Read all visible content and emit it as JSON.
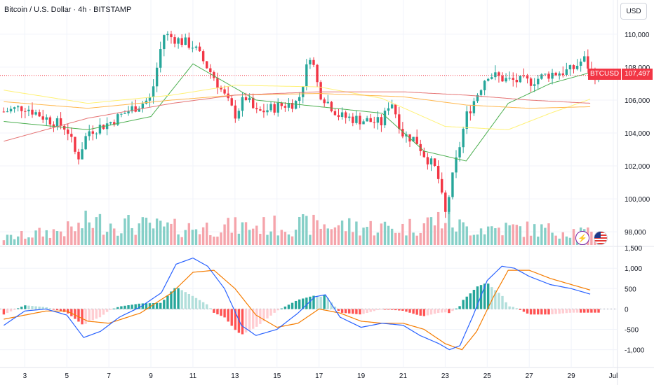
{
  "header": {
    "title": "Bitcoin / U.S. Dollar · 4h · BITSTAMP",
    "currency_button": "USD"
  },
  "last_price": {
    "symbol": "BTCUSD",
    "value": "107,497",
    "raw": 107497
  },
  "colors": {
    "up": "#26a69a",
    "down": "#f23645",
    "vol_up": "#85cfc7",
    "vol_down": "#f5a4ab",
    "sma_fast": "#4caf50",
    "sma_mid": "#fff176",
    "sma_slow": "#ffb74d",
    "sma_long": "#e57373",
    "macd": "#2962ff",
    "signal": "#f57c00"
  },
  "icons": [
    "flash-icon",
    "us-flag-icon"
  ],
  "chart_data": [
    {
      "type": "candlestick",
      "timeframe": "4h",
      "ylim": [
        97200,
        110800
      ],
      "y_ticks": [
        "98,000",
        "100,000",
        "102,000",
        "104,000",
        "106,000",
        "108,000",
        "110,000"
      ],
      "x_ticks": [
        "3",
        "5",
        "7",
        "9",
        "11",
        "13",
        "15",
        "17",
        "19",
        "21",
        "23",
        "25",
        "27",
        "29",
        "Jul"
      ],
      "anchors": {
        "days": [
          2,
          3,
          4,
          5,
          5.5,
          6,
          7,
          8,
          9,
          9.6,
          10,
          11,
          12,
          13,
          13.5,
          14,
          15,
          16,
          16.6,
          17,
          18,
          19,
          20,
          20.4,
          21,
          21.6,
          22,
          22.6,
          23,
          23.4,
          24,
          25,
          26,
          27,
          28,
          29,
          29.6,
          30,
          30.3
        ],
        "close": [
          105300,
          105600,
          104900,
          104300,
          102400,
          104100,
          104600,
          105400,
          106100,
          110000,
          109800,
          109300,
          107400,
          105100,
          106200,
          105200,
          105600,
          105900,
          108900,
          106500,
          105000,
          104800,
          104600,
          106100,
          103900,
          103600,
          102700,
          101700,
          99000,
          101600,
          105000,
          107600,
          107200,
          107100,
          107600,
          107800,
          108500,
          107600,
          107497
        ]
      },
      "candle_count": 168,
      "moving_averages": [
        {
          "days": [
            2,
            6,
            9,
            11,
            14,
            17,
            20,
            22,
            24,
            26,
            28,
            30
          ],
          "values": [
            104700,
            104200,
            105000,
            108200,
            106000,
            105600,
            105200,
            102900,
            102300,
            105800,
            107000,
            107700
          ]
        },
        {
          "days": [
            2,
            6,
            10,
            13,
            17,
            20,
            23,
            26,
            28,
            30
          ],
          "values": [
            106600,
            105800,
            106300,
            106900,
            106800,
            106100,
            104400,
            104200,
            105200,
            106100
          ]
        },
        {
          "days": [
            2,
            6,
            10,
            13,
            17,
            21,
            24,
            27,
            30
          ],
          "values": [
            105900,
            105500,
            106000,
            106300,
            106400,
            106200,
            105700,
            105500,
            105600
          ]
        },
        {
          "days": [
            2,
            6,
            10,
            13,
            17,
            21,
            24,
            27,
            30
          ],
          "values": [
            103500,
            104900,
            105800,
            106300,
            106500,
            106500,
            106300,
            106000,
            105800
          ]
        }
      ],
      "volume": {
        "days": [
          2,
          5.5,
          6,
          10,
          17,
          21,
          23,
          23.5,
          24,
          26,
          29.5,
          30
        ],
        "values": [
          0.2,
          0.5,
          0.7,
          0.5,
          0.6,
          0.5,
          0.8,
          0.6,
          0.5,
          0.5,
          0.4,
          0.3
        ]
      }
    },
    {
      "type": "macd",
      "ylim": [
        -1350,
        1450
      ],
      "y_ticks": [
        "1,500",
        "1,000",
        "500",
        "0",
        "-500",
        "-1,000"
      ],
      "macd": {
        "days": [
          2,
          3,
          4,
          5,
          5.8,
          6.6,
          7.5,
          8.5,
          9.5,
          10.2,
          11,
          11.7,
          12.5,
          13.3,
          14,
          15,
          16,
          16.8,
          17.3,
          18,
          19,
          20,
          21,
          21.8,
          22.7,
          23.2,
          23.7,
          24.3,
          25,
          25.7,
          26.3,
          27,
          28,
          29,
          30
        ],
        "values": [
          -400,
          -50,
          0,
          -150,
          -700,
          -550,
          -200,
          50,
          400,
          1100,
          1250,
          1050,
          500,
          -400,
          -650,
          -500,
          -100,
          300,
          350,
          -200,
          -450,
          -350,
          -400,
          -650,
          -850,
          -1000,
          -900,
          -200,
          700,
          1050,
          1000,
          800,
          600,
          500,
          350
        ]
      },
      "signal": {
        "days": [
          2,
          3,
          4,
          5,
          6,
          7,
          8.5,
          10,
          11,
          12,
          13,
          14,
          15,
          16,
          17,
          18,
          19,
          20,
          21,
          22,
          23,
          23.8,
          24.5,
          25.3,
          26,
          27,
          28,
          29,
          30
        ],
        "values": [
          -250,
          -150,
          -50,
          -50,
          -300,
          -350,
          -100,
          400,
          900,
          950,
          500,
          -150,
          -450,
          -350,
          0,
          -100,
          -300,
          -350,
          -350,
          -500,
          -850,
          -1000,
          -550,
          300,
          950,
          950,
          750,
          600,
          450
        ]
      }
    }
  ]
}
